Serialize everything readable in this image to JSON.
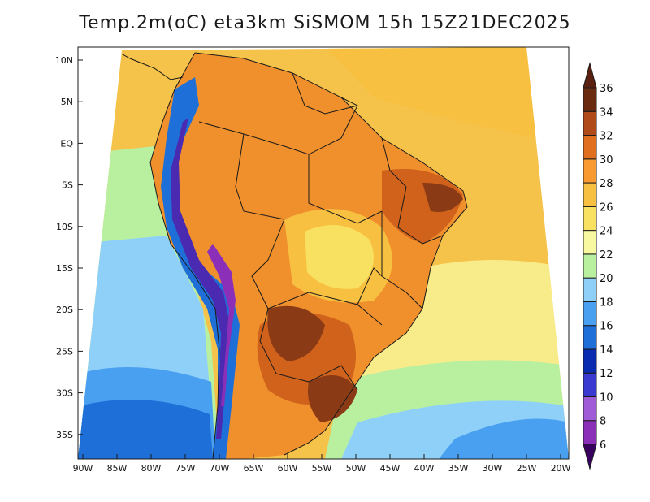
{
  "title": "Temp.2m(oC) eta3km SiSMOM 15h 15Z21DEC2025",
  "latitude_labels": [
    "10N",
    "5N",
    "EQ",
    "5S",
    "10S",
    "15S",
    "20S",
    "25S",
    "30S",
    "35S"
  ],
  "longitude_labels": [
    "90W",
    "85W",
    "80W",
    "75W",
    "70W",
    "65W",
    "60W",
    "55W",
    "50W",
    "45W",
    "40W",
    "35W",
    "30W",
    "25W",
    "20W"
  ],
  "colorbar": {
    "labels": [
      "6",
      "8",
      "10",
      "12",
      "14",
      "16",
      "18",
      "20",
      "22",
      "24",
      "26",
      "28",
      "30",
      "32",
      "34",
      "36"
    ],
    "colors": [
      "#5a0a7a",
      "#8b2fb8",
      "#a05bd6",
      "#3a3ad0",
      "#0a2ab0",
      "#1f6fd8",
      "#4aa0f0",
      "#8fd0f8",
      "#b8f0a0",
      "#f8f8a0",
      "#f8e060",
      "#f8c040",
      "#f89a30",
      "#e07020",
      "#b04a18",
      "#6a2a10"
    ],
    "min_color": "#3a0060",
    "max_color": "#5a2010"
  },
  "colors": {
    "ocean_warm": "#f5c24a",
    "ocean_mid": "#f8ec8a",
    "ocean_cool": "#b8f0a0",
    "ocean_cold": "#8fd0f8",
    "ocean_colder": "#4aa0f0",
    "ocean_coldest": "#1f6fd8",
    "land_hot": "#f0902c",
    "land_hotter": "#d0621c",
    "land_hottest": "#8a3a14",
    "andes_cold": "#4a2ab0",
    "border": "#1a1a1a"
  }
}
